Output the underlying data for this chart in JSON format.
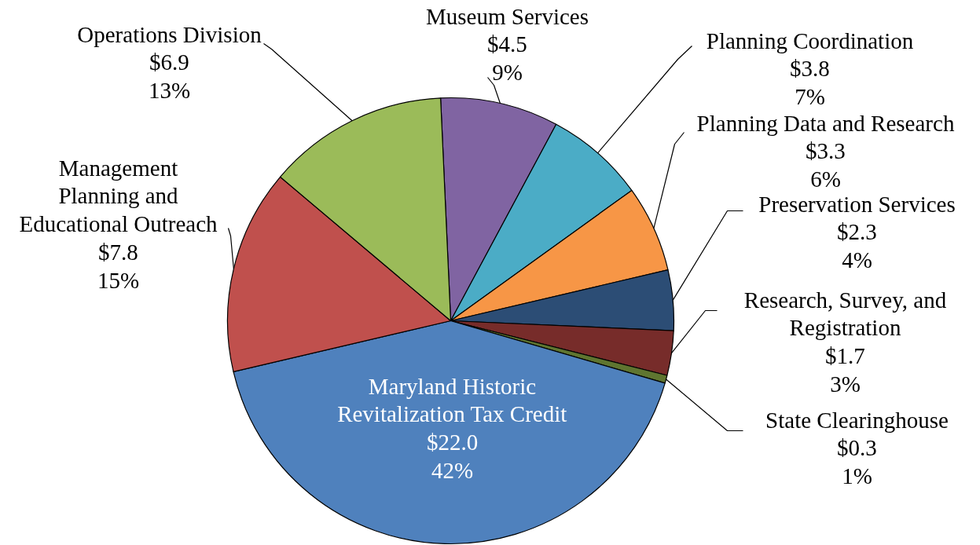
{
  "chart_data": {
    "type": "pie",
    "categories": [
      "Museum Services",
      "Planning Coordination",
      "Planning Data and Research",
      "Preservation Services",
      "Research, Survey, and\nRegistration",
      "State Clearinghouse",
      "Maryland Historic\nRevitalization Tax Credit",
      "Management\nPlanning and\nEducational Outreach",
      "Operations Division"
    ],
    "values": [
      4.5,
      3.8,
      3.3,
      2.3,
      1.7,
      0.3,
      22.0,
      7.8,
      6.9
    ],
    "value_labels": [
      "$4.5\n9%",
      "$3.8\n7%",
      "$3.3\n6%",
      "$2.3\n4%",
      "$1.7\n3%",
      "$0.3\n1%",
      "$22.0\n42%",
      "$7.8\n15%",
      "$6.9\n13%"
    ],
    "colors": [
      "#8064a2",
      "#4bacc6",
      "#f79646",
      "#2c4d75",
      "#772c2a",
      "#5f7530",
      "#4f81bd",
      "#c0504d",
      "#9bbb59"
    ]
  }
}
